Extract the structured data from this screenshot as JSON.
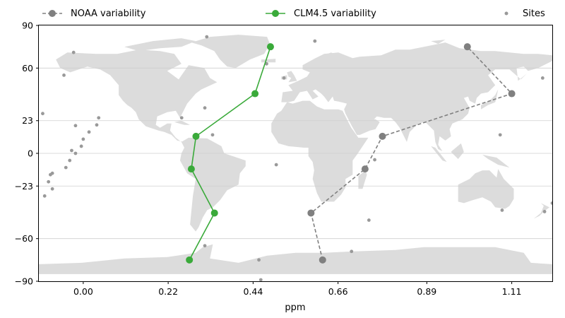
{
  "chart_data": {
    "type": "line",
    "xlabel": "ppm",
    "ylabel": "",
    "xlim": [
      -0.115,
      1.215
    ],
    "ylim": [
      -90,
      90
    ],
    "x_ticks": [
      0.0,
      0.22,
      0.44,
      0.66,
      0.89,
      1.11
    ],
    "x_tick_labels": [
      "0.00",
      "0.22",
      "0.44",
      "0.66",
      "0.89",
      "1.11"
    ],
    "y_ticks": [
      90,
      60,
      23,
      0,
      -23,
      -60,
      -90
    ],
    "y_tick_labels": [
      "90",
      "60",
      "23",
      "0",
      "−23",
      "−60",
      "−90"
    ],
    "grid": "horizontal",
    "legend_placement": "top",
    "background": "world-map",
    "series": [
      {
        "name": "NOAA variability",
        "style": "dashed",
        "color": "#808080",
        "points": [
          {
            "x": 0.62,
            "y": -75
          },
          {
            "x": 0.59,
            "y": -42
          },
          {
            "x": 0.73,
            "y": -11
          },
          {
            "x": 0.775,
            "y": 12
          },
          {
            "x": 1.11,
            "y": 42
          },
          {
            "x": 0.995,
            "y": 75
          }
        ]
      },
      {
        "name": "CLM4.5 variability",
        "style": "solid",
        "color": "#3aaa3a",
        "points": [
          {
            "x": 0.275,
            "y": -75
          },
          {
            "x": 0.34,
            "y": -42
          },
          {
            "x": 0.28,
            "y": -11
          },
          {
            "x": 0.292,
            "y": 12
          },
          {
            "x": 0.445,
            "y": 42
          },
          {
            "x": 0.485,
            "y": 75
          }
        ]
      },
      {
        "name": "Sites",
        "style": "markers",
        "color": "#999999",
        "points": [
          {
            "x": 0.32,
            "y": 82
          },
          {
            "x": -0.025,
            "y": 71
          },
          {
            "x": 0.6,
            "y": 79
          },
          {
            "x": 0.475,
            "y": 63
          },
          {
            "x": -0.05,
            "y": 55
          },
          {
            "x": 0.52,
            "y": 53
          },
          {
            "x": 1.19,
            "y": 53
          },
          {
            "x": 0.315,
            "y": 32
          },
          {
            "x": 0.255,
            "y": 25
          },
          {
            "x": -0.105,
            "y": 28
          },
          {
            "x": 0.04,
            "y": 25
          },
          {
            "x": -0.02,
            "y": 19.5
          },
          {
            "x": 0.035,
            "y": 20
          },
          {
            "x": 0.015,
            "y": 15
          },
          {
            "x": 0.335,
            "y": 13
          },
          {
            "x": 1.08,
            "y": 13
          },
          {
            "x": 0.0,
            "y": 10
          },
          {
            "x": -0.005,
            "y": 5
          },
          {
            "x": -0.03,
            "y": 2
          },
          {
            "x": -0.02,
            "y": 0
          },
          {
            "x": -0.035,
            "y": -5
          },
          {
            "x": -0.045,
            "y": -10
          },
          {
            "x": 0.5,
            "y": -8
          },
          {
            "x": 0.755,
            "y": -4.5
          },
          {
            "x": -0.08,
            "y": -14
          },
          {
            "x": -0.085,
            "y": -15
          },
          {
            "x": -0.09,
            "y": -20
          },
          {
            "x": -0.08,
            "y": -25
          },
          {
            "x": -0.1,
            "y": -30
          },
          {
            "x": 1.085,
            "y": -40
          },
          {
            "x": 1.195,
            "y": -41
          },
          {
            "x": 1.215,
            "y": -35
          },
          {
            "x": 0.74,
            "y": -47
          },
          {
            "x": 0.315,
            "y": -65
          },
          {
            "x": 0.695,
            "y": -69
          },
          {
            "x": 0.455,
            "y": -75
          },
          {
            "x": 0.46,
            "y": -89
          }
        ]
      }
    ]
  }
}
